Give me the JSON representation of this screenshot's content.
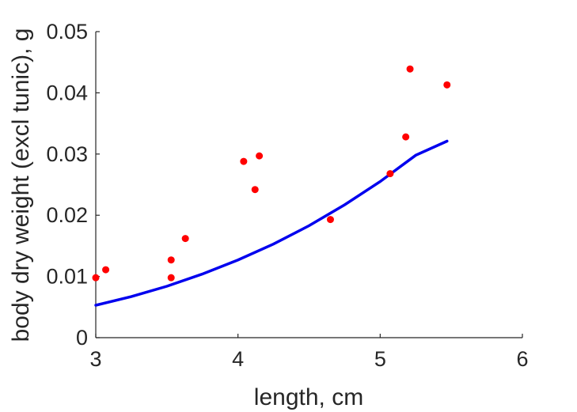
{
  "chart_data": {
    "type": "scatter",
    "title": "",
    "xlabel": "length, cm",
    "ylabel": "body dry weight (excl tunic), g",
    "xlim": [
      3,
      6
    ],
    "ylim": [
      0,
      0.05
    ],
    "x_ticks": [
      3,
      4,
      5,
      6
    ],
    "x_tick_labels": [
      "3",
      "4",
      "5",
      "6"
    ],
    "y_ticks": [
      0,
      0.01,
      0.02,
      0.03,
      0.04,
      0.05
    ],
    "y_tick_labels": [
      "0",
      "0.01",
      "0.02",
      "0.03",
      "0.04",
      "0.05"
    ],
    "grid": false,
    "series": [
      {
        "type": "scatter",
        "color": "#ff0000",
        "points": [
          {
            "x": 3.0,
            "y": 0.0098
          },
          {
            "x": 3.07,
            "y": 0.0111
          },
          {
            "x": 3.53,
            "y": 0.0127
          },
          {
            "x": 3.53,
            "y": 0.0098
          },
          {
            "x": 3.63,
            "y": 0.0162
          },
          {
            "x": 4.04,
            "y": 0.0288
          },
          {
            "x": 4.12,
            "y": 0.0242
          },
          {
            "x": 4.15,
            "y": 0.0297
          },
          {
            "x": 4.65,
            "y": 0.0193
          },
          {
            "x": 5.07,
            "y": 0.0268
          },
          {
            "x": 5.18,
            "y": 0.0328
          },
          {
            "x": 5.21,
            "y": 0.0439
          },
          {
            "x": 5.47,
            "y": 0.0413
          }
        ]
      },
      {
        "type": "line",
        "color": "#0000ee",
        "x": [
          3.0,
          3.25,
          3.5,
          3.75,
          4.0,
          4.25,
          4.5,
          4.75,
          5.0,
          5.25,
          5.47
        ],
        "y": [
          0.0053,
          0.0067,
          0.0084,
          0.0104,
          0.0127,
          0.0153,
          0.0183,
          0.0217,
          0.0255,
          0.0298,
          0.0321
        ]
      }
    ]
  }
}
